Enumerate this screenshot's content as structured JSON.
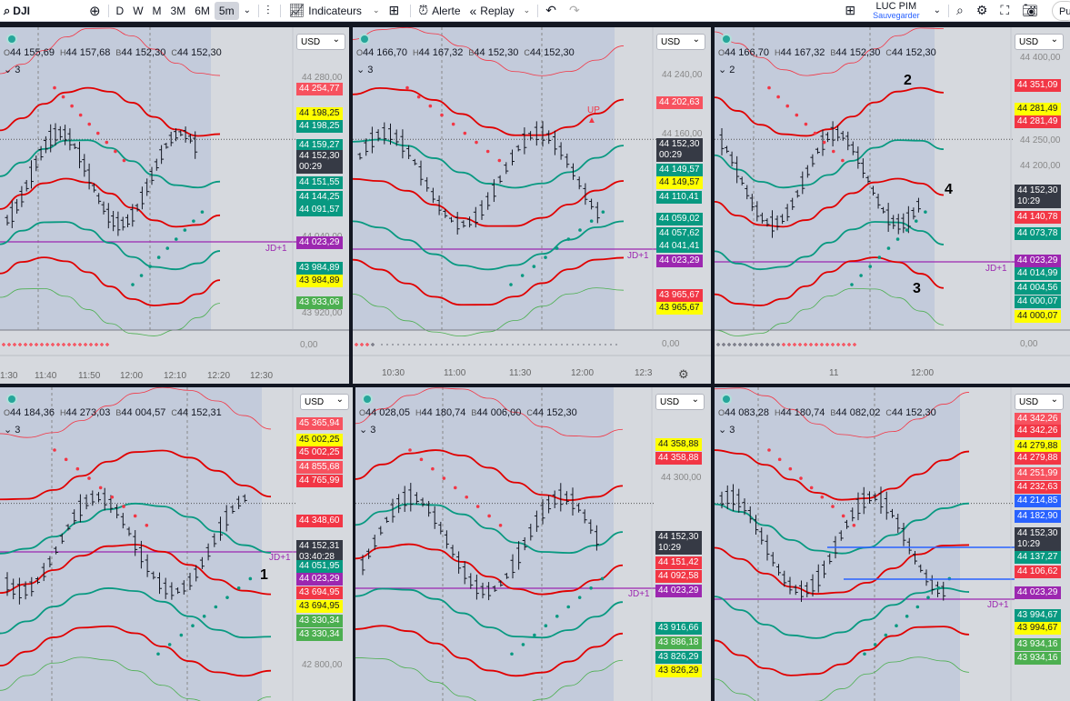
{
  "toolbar": {
    "symbol": "DJI",
    "intervals": [
      "D",
      "W",
      "M",
      "3M",
      "6M",
      "5m"
    ],
    "active_interval": "5m",
    "indicators_label": "Indicateurs",
    "alert_label": "Alerte",
    "replay_label": "Replay",
    "user_name": "LUC PIM",
    "save_label": "Sauvegarder",
    "publish_label": "Pu"
  },
  "panels": [
    {
      "ohlc": [
        "44 155,69",
        "44 157,68",
        "44 152,30",
        "44 152,30"
      ],
      "fold": "3",
      "currency": "USD",
      "axis_ticks": [
        "44 280,00",
        "44 040,00",
        "43 920,00"
      ],
      "labels": [
        {
          "text": "44 254,77",
          "type": "pk"
        },
        {
          "text": "44 198,25",
          "type": "y"
        },
        {
          "text": "44 198,25",
          "type": "g"
        },
        {
          "text": "44 159,27",
          "type": "g"
        },
        {
          "text": "44 152,30",
          "sub": "00:29",
          "type": "d"
        },
        {
          "text": "44 151,55",
          "type": "g"
        },
        {
          "text": "44 144,25",
          "type": "g"
        },
        {
          "text": "44 091,57",
          "type": "g"
        },
        {
          "text": "44 023,29",
          "type": "p"
        },
        {
          "text": "43 984,89",
          "type": "g"
        },
        {
          "text": "43 984,89",
          "type": "y"
        },
        {
          "text": "43 933,06",
          "type": "lg"
        }
      ],
      "times": [
        "1:30",
        "11:40",
        "11:50",
        "12:00",
        "12:10",
        "12:20",
        "12:30"
      ],
      "jd_label": "JD+1",
      "zero": "0,00"
    },
    {
      "ohlc": [
        "44 166,70",
        "44 167,32",
        "44 152,30",
        "44 152,30"
      ],
      "fold": "3",
      "currency": "USD",
      "axis_ticks": [
        "44 240,00",
        "44 160,00"
      ],
      "labels": [
        {
          "text": "44 202,63",
          "type": "pk"
        },
        {
          "text": "44 152,30",
          "sub": "00:29",
          "type": "d"
        },
        {
          "text": "44 149,57",
          "type": "g"
        },
        {
          "text": "44 149,57",
          "type": "y"
        },
        {
          "text": "44 110,41",
          "type": "g"
        },
        {
          "text": "44 059,02",
          "type": "g"
        },
        {
          "text": "44 057,62",
          "type": "g"
        },
        {
          "text": "44 041,41",
          "type": "g"
        },
        {
          "text": "44 023,29",
          "type": "p"
        },
        {
          "text": "43 965,67",
          "type": "r"
        },
        {
          "text": "43 965,67",
          "type": "y"
        }
      ],
      "times": [
        "10:30",
        "11:00",
        "11:30",
        "12:00",
        "12:3"
      ],
      "jd_label": "JD+1",
      "up_label": "UP",
      "zero": "0,00"
    },
    {
      "ohlc": [
        "44 166,70",
        "44 167,32",
        "44 152,30",
        "44 152,30"
      ],
      "fold": "2",
      "currency": "USD",
      "axis_ticks": [
        "44 400,00",
        "44 350,00",
        "44 250,00",
        "44 200,00"
      ],
      "labels": [
        {
          "text": "44 351,09",
          "type": "r"
        },
        {
          "text": "44 281,49",
          "type": "y"
        },
        {
          "text": "44 281,49",
          "type": "r"
        },
        {
          "text": "44 152,30",
          "sub": "10:29",
          "type": "d"
        },
        {
          "text": "44 140,78",
          "type": "r"
        },
        {
          "text": "44 073,78",
          "type": "g"
        },
        {
          "text": "44 023,29",
          "type": "p"
        },
        {
          "text": "44 014,99",
          "type": "g"
        },
        {
          "text": "44 004,56",
          "type": "g"
        },
        {
          "text": "44 000,07",
          "type": "g"
        },
        {
          "text": "44 000,07",
          "type": "y"
        }
      ],
      "times": [
        "11",
        "12:00"
      ],
      "jd_label": "JD+1",
      "annotations": [
        "2",
        "4",
        "3"
      ],
      "zero": "0,00"
    },
    {
      "ohlc": [
        "44 184,36",
        "44 273,03",
        "44 004,57",
        "44 152,31"
      ],
      "fold": "3",
      "currency": "USD",
      "axis_ticks": [
        "42 800,00"
      ],
      "labels": [
        {
          "text": "45 365,94",
          "type": "pk"
        },
        {
          "text": "45 002,25",
          "type": "y"
        },
        {
          "text": "45 002,25",
          "type": "r"
        },
        {
          "text": "44 855,68",
          "type": "pk"
        },
        {
          "text": "44 765,99",
          "type": "r"
        },
        {
          "text": "44 348,60",
          "type": "r"
        },
        {
          "text": "44 152,31",
          "sub": "03:40:28",
          "type": "d"
        },
        {
          "text": "44 051,95",
          "type": "g"
        },
        {
          "text": "44 023,29",
          "type": "p"
        },
        {
          "text": "43 694,95",
          "type": "r"
        },
        {
          "text": "43 694,95",
          "type": "y"
        },
        {
          "text": "43 330,34",
          "type": "lg"
        },
        {
          "text": "43 330,34",
          "type": "lg"
        }
      ],
      "jd_label": "JD+1",
      "annotations": [
        "1"
      ]
    },
    {
      "ohlc": [
        "44 028,05",
        "44 180,74",
        "44 006,00",
        "44 152,30"
      ],
      "fold": "3",
      "currency": "USD",
      "axis_ticks": [
        "44 300,00"
      ],
      "labels": [
        {
          "text": "44 358,88",
          "type": "y"
        },
        {
          "text": "44 358,88",
          "type": "r"
        },
        {
          "text": "44 152,30",
          "sub": "10:29",
          "type": "d"
        },
        {
          "text": "44 151,42",
          "type": "r"
        },
        {
          "text": "44 092,58",
          "type": "r"
        },
        {
          "text": "44 023,29",
          "type": "p"
        },
        {
          "text": "43 916,66",
          "type": "g"
        },
        {
          "text": "43 886,18",
          "type": "lg"
        },
        {
          "text": "43 826,29",
          "type": "g"
        },
        {
          "text": "43 826,29",
          "type": "y"
        }
      ],
      "jd_label": "JD+1"
    },
    {
      "ohlc": [
        "44 083,28",
        "44 180,74",
        "44 082,02",
        "44 152,30"
      ],
      "fold": "3",
      "currency": "USD",
      "labels": [
        {
          "text": "44 342,26",
          "type": "pk"
        },
        {
          "text": "44 342,26",
          "type": "r"
        },
        {
          "text": "44 279,88",
          "type": "y"
        },
        {
          "text": "44 279,88",
          "type": "r"
        },
        {
          "text": "44 251,99",
          "type": "pk"
        },
        {
          "text": "44 232,63",
          "type": "r"
        },
        {
          "text": "44 214,85",
          "type": "b"
        },
        {
          "text": "44 182,90",
          "type": "b"
        },
        {
          "text": "44 152,30",
          "sub": "10:29",
          "type": "d"
        },
        {
          "text": "44 137,27",
          "type": "g"
        },
        {
          "text": "44 106,62",
          "type": "r"
        },
        {
          "text": "44 023,29",
          "type": "p"
        },
        {
          "text": "43 994,67",
          "type": "g"
        },
        {
          "text": "43 994,67",
          "type": "y"
        },
        {
          "text": "43 934,16",
          "type": "lg"
        },
        {
          "text": "43 934,16",
          "type": "lg"
        }
      ],
      "jd_label": "JD+1"
    }
  ],
  "colors": {
    "green": "#089981",
    "red": "#f23645",
    "yellow": "#ffff00",
    "purple": "#9c27b0",
    "blue": "#2962ff",
    "dark": "#363a45"
  }
}
